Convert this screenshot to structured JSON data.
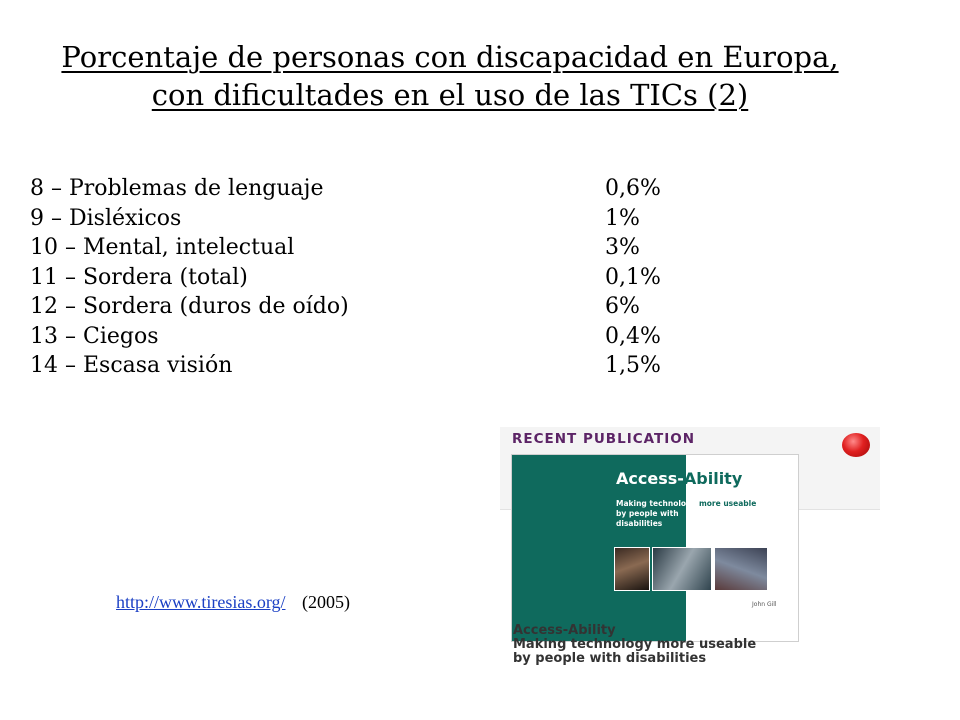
{
  "title": {
    "line1": "Porcentaje de personas con discapacidad en Europa,",
    "line2": "con dificultades en el uso de las TICs (2)"
  },
  "items": [
    {
      "label": "8 – Problemas de lenguaje",
      "value": "0,6%"
    },
    {
      "label": "9 – Disléxicos",
      "value": "1%"
    },
    {
      "label": "10 – Mental, intelectual",
      "value": "3%"
    },
    {
      "label": "11 – Sordera (total)",
      "value": "0,1%"
    },
    {
      "label": "12 – Sordera (duros de oído)",
      "value": "6%"
    },
    {
      "label": "13 – Ciegos",
      "value": "0,4%"
    },
    {
      "label": "14 – Escasa visión",
      "value": "1,5%"
    }
  ],
  "source": {
    "url": "http://www.tiresias.org/",
    "year": "(2005)"
  },
  "publication": {
    "header": "RECENT PUBLICATION",
    "cover_title_part1": "Access-",
    "cover_title_part2": "Ability",
    "cover_subtitle_part1": "Making technology",
    "cover_subtitle_part2": "more useable",
    "cover_subtitle_line2": "by people with",
    "cover_subtitle_line3": "disabilities",
    "cover_author": "John Gill",
    "caption_line1": "Access-Ability",
    "caption_line2": "Making technology more useable",
    "caption_line3": "by people with disabilities"
  }
}
